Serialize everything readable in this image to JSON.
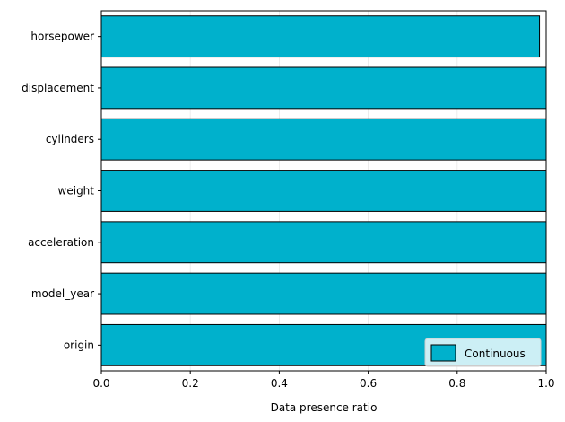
{
  "chart_data": {
    "type": "bar",
    "orientation": "horizontal",
    "categories": [
      "horsepower",
      "displacement",
      "cylinders",
      "weight",
      "acceleration",
      "model_year",
      "origin"
    ],
    "series": [
      {
        "name": "Continuous",
        "values": [
          0.985,
          1.0,
          1.0,
          1.0,
          1.0,
          1.0,
          1.0
        ]
      }
    ],
    "xlabel": "Data presence ratio",
    "ylabel": "",
    "xlim": [
      0,
      1
    ],
    "xticks": [
      "0.0",
      "0.2",
      "0.4",
      "0.6",
      "0.8",
      "1.0"
    ],
    "bar_color": "#00b1cc",
    "grid": "vertical, faint",
    "legend_position": "bottom-right"
  }
}
